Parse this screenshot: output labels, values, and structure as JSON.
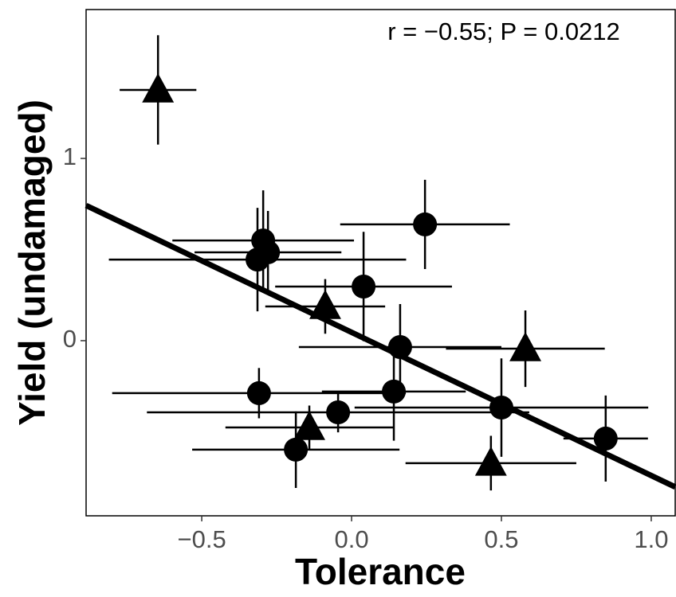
{
  "chart_data": {
    "type": "scatter",
    "xlabel": "Tolerance",
    "ylabel": "Yield (undamaged)",
    "annotation": "r = −0.55; P = 0.0212",
    "xlim": [
      -0.886,
      1.08
    ],
    "ylim": [
      -0.961,
      1.817
    ],
    "xticks": [
      {
        "value": -0.5,
        "label": "−0.5"
      },
      {
        "value": 0,
        "label": "0.0"
      },
      {
        "value": 0.5,
        "label": "0.5"
      },
      {
        "value": 1,
        "label": "1.0"
      }
    ],
    "yticks": [
      0,
      1
    ],
    "grid": false,
    "color": "#000000",
    "series": [
      {
        "shape": "circle",
        "x": [
          0.245,
          -0.295,
          -0.279,
          -0.314,
          0.04,
          0.162,
          -0.309,
          0.141,
          -0.045,
          0.5,
          0.848,
          -0.186
        ],
        "values": [
          0.638,
          0.55,
          0.485,
          0.445,
          0.297,
          -0.035,
          -0.288,
          -0.279,
          -0.393,
          -0.367,
          -0.537,
          -0.598
        ],
        "xerr": [
          0.283,
          0.303,
          0.245,
          0.496,
          0.295,
          0.338,
          0.49,
          0.24,
          0.638,
          0.49,
          0.141,
          0.346
        ],
        "yerr": [
          0.245,
          0.275,
          0.227,
          0.284,
          0.3,
          0.236,
          0.138,
          0.27,
          0.11,
          0.27,
          0.236,
          0.21
        ]
      },
      {
        "shape": "triangle",
        "x": [
          -0.646,
          -0.088,
          0.58,
          -0.141,
          0.465
        ],
        "values": [
          1.376,
          0.188,
          -0.044,
          -0.476,
          -0.672
        ],
        "xerr": [
          0.128,
          0.2,
          0.265,
          0.28,
          0.285
        ],
        "yerr": [
          0.3,
          0.15,
          0.21,
          0.12,
          0.15
        ]
      }
    ],
    "fit": {
      "x": [
        -0.886,
        1.08
      ],
      "values": [
        0.742,
        -0.803
      ]
    }
  }
}
